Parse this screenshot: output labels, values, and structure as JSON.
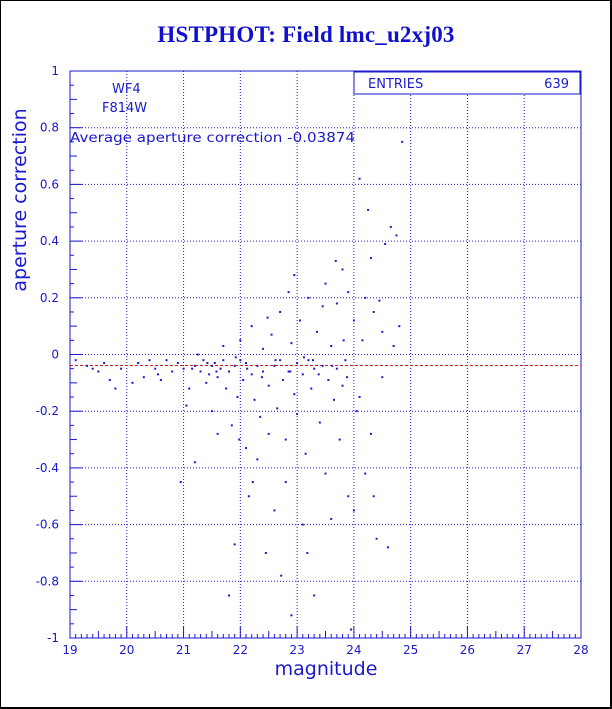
{
  "title": "HSTPHOT: Field lmc_u2xj03",
  "colors": {
    "axis": "#1a1acc",
    "grid": "#1a1acc",
    "points": "#1a1acc",
    "average_line": "#cc2222",
    "title": "#1010cc"
  },
  "chart_data": {
    "type": "scatter",
    "title": "HSTPHOT: Field lmc_u2xj03",
    "xlabel": "magnitude",
    "ylabel": "aperture correction",
    "xlim": [
      19,
      28
    ],
    "ylim": [
      -1,
      1
    ],
    "x_ticks": [
      "19",
      "20",
      "21",
      "22",
      "23",
      "24",
      "25",
      "26",
      "27",
      "28"
    ],
    "y_ticks": [
      "-1",
      "-0.8",
      "-0.6",
      "-0.4",
      "-0.2",
      "0",
      "0.2",
      "0.4",
      "0.6",
      "0.8",
      "1"
    ],
    "grid": true,
    "annotations": {
      "chip": "WF4",
      "filter": "F814W",
      "average_label": "Average aperture correction",
      "average_value": -0.03874,
      "average_text": "Average aperture correction -0.03874"
    },
    "stats": {
      "entries_label": "ENTRIES",
      "entries_value": "639"
    },
    "points": [
      [
        19.1,
        -0.02
      ],
      [
        19.3,
        -0.04
      ],
      [
        19.5,
        -0.06
      ],
      [
        19.6,
        -0.03
      ],
      [
        19.7,
        -0.09
      ],
      [
        19.8,
        -0.12
      ],
      [
        19.9,
        -0.05
      ],
      [
        20.2,
        -0.03
      ],
      [
        20.3,
        -0.08
      ],
      [
        20.4,
        -0.02
      ],
      [
        20.5,
        -0.05
      ],
      [
        20.6,
        -0.09
      ],
      [
        20.7,
        -0.02
      ],
      [
        20.8,
        -0.06
      ],
      [
        20.9,
        -0.03
      ],
      [
        20.95,
        -0.45
      ],
      [
        21.0,
        -0.05
      ],
      [
        21.05,
        -0.18
      ],
      [
        21.1,
        -0.12
      ],
      [
        21.2,
        -0.04
      ],
      [
        21.2,
        -0.38
      ],
      [
        21.25,
        0.0
      ],
      [
        21.3,
        -0.06
      ],
      [
        21.35,
        -0.02
      ],
      [
        21.4,
        -0.1
      ],
      [
        21.45,
        -0.07
      ],
      [
        21.5,
        -0.04
      ],
      [
        21.5,
        -0.2
      ],
      [
        21.55,
        -0.03
      ],
      [
        21.6,
        -0.08
      ],
      [
        21.6,
        -0.28
      ],
      [
        21.65,
        -0.05
      ],
      [
        21.7,
        -0.02
      ],
      [
        21.7,
        0.03
      ],
      [
        21.75,
        -0.12
      ],
      [
        21.8,
        -0.06
      ],
      [
        21.8,
        -0.85
      ],
      [
        21.85,
        -0.25
      ],
      [
        21.9,
        -0.04
      ],
      [
        21.9,
        -0.67
      ],
      [
        21.95,
        -0.15
      ],
      [
        22.0,
        -0.02
      ],
      [
        22.0,
        0.05
      ],
      [
        22.05,
        -0.09
      ],
      [
        22.1,
        -0.33
      ],
      [
        22.1,
        -0.03
      ],
      [
        22.15,
        -0.5
      ],
      [
        22.2,
        -0.07
      ],
      [
        22.2,
        0.1
      ],
      [
        22.25,
        -0.16
      ],
      [
        22.3,
        -0.04
      ],
      [
        22.3,
        -0.37
      ],
      [
        22.35,
        -0.22
      ],
      [
        22.4,
        0.02
      ],
      [
        22.4,
        -0.06
      ],
      [
        22.45,
        -0.7
      ],
      [
        22.5,
        -0.11
      ],
      [
        22.5,
        -0.28
      ],
      [
        22.55,
        0.07
      ],
      [
        22.6,
        -0.04
      ],
      [
        22.6,
        -0.55
      ],
      [
        22.65,
        -0.19
      ],
      [
        22.7,
        -0.02
      ],
      [
        22.7,
        0.15
      ],
      [
        22.75,
        -0.09
      ],
      [
        22.8,
        -0.3
      ],
      [
        22.8,
        -0.45
      ],
      [
        22.85,
        -0.06
      ],
      [
        22.9,
        0.04
      ],
      [
        22.9,
        -0.92
      ],
      [
        22.95,
        -0.14
      ],
      [
        23.0,
        -0.03
      ],
      [
        23.0,
        -0.21
      ],
      [
        23.05,
        0.12
      ],
      [
        23.1,
        -0.07
      ],
      [
        23.1,
        -0.6
      ],
      [
        23.15,
        -0.35
      ],
      [
        23.2,
        0.2
      ],
      [
        23.2,
        -0.02
      ],
      [
        23.25,
        -0.12
      ],
      [
        23.3,
        -0.05
      ],
      [
        23.3,
        -0.85
      ],
      [
        23.35,
        0.08
      ],
      [
        23.4,
        -0.24
      ],
      [
        23.45,
        -0.04
      ],
      [
        23.5,
        0.25
      ],
      [
        23.5,
        -0.42
      ],
      [
        23.55,
        -0.09
      ],
      [
        23.6,
        0.03
      ],
      [
        23.6,
        -0.58
      ],
      [
        23.65,
        -0.16
      ],
      [
        23.7,
        0.18
      ],
      [
        23.7,
        -0.05
      ],
      [
        23.75,
        -0.3
      ],
      [
        23.8,
        0.3
      ],
      [
        23.8,
        -0.11
      ],
      [
        23.85,
        -0.02
      ],
      [
        23.9,
        0.22
      ],
      [
        23.9,
        -0.5
      ],
      [
        23.95,
        -0.97
      ],
      [
        24.0,
        0.12
      ],
      [
        24.0,
        -0.55
      ],
      [
        24.05,
        -0.2
      ],
      [
        24.1,
        0.62
      ],
      [
        24.1,
        -0.15
      ],
      [
        24.15,
        0.05
      ],
      [
        24.2,
        0.2
      ],
      [
        24.25,
        0.51
      ],
      [
        24.3,
        0.34
      ],
      [
        24.3,
        -0.28
      ],
      [
        24.35,
        0.15
      ],
      [
        24.4,
        -0.65
      ],
      [
        24.45,
        0.19
      ],
      [
        24.5,
        -0.08
      ],
      [
        24.55,
        0.39
      ],
      [
        24.6,
        -0.68
      ],
      [
        24.65,
        0.45
      ],
      [
        24.7,
        0.03
      ],
      [
        24.75,
        0.42
      ],
      [
        24.8,
        0.1
      ],
      [
        24.85,
        0.75
      ],
      [
        24.35,
        -0.5
      ],
      [
        24.2,
        -0.42
      ],
      [
        24.5,
        0.08
      ],
      [
        19.4,
        -0.05
      ],
      [
        20.1,
        -0.1
      ],
      [
        20.55,
        -0.07
      ],
      [
        21.15,
        -0.05
      ],
      [
        21.42,
        -0.03
      ],
      [
        21.58,
        -0.06
      ],
      [
        21.92,
        -0.01
      ],
      [
        22.12,
        -0.05
      ],
      [
        22.38,
        -0.08
      ],
      [
        22.62,
        -0.02
      ],
      [
        22.88,
        -0.06
      ],
      [
        23.12,
        -0.01
      ],
      [
        23.38,
        -0.07
      ],
      [
        23.62,
        -0.04
      ],
      [
        23.88,
        -0.08
      ],
      [
        22.22,
        -0.45
      ],
      [
        22.72,
        -0.78
      ],
      [
        23.28,
        -0.02
      ],
      [
        22.95,
        0.28
      ],
      [
        23.45,
        0.17
      ],
      [
        23.68,
        0.33
      ],
      [
        23.82,
        0.05
      ],
      [
        22.48,
        0.13
      ],
      [
        22.85,
        0.22
      ],
      [
        21.98,
        -0.3
      ],
      [
        23.18,
        -0.7
      ]
    ]
  }
}
